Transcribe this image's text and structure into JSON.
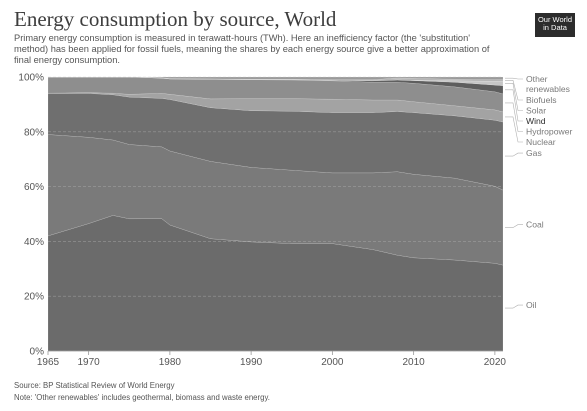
{
  "header": {
    "title": "Energy consumption by source, World",
    "subtitle": "Primary energy consumption is measured in terawatt-hours (TWh). Here an inefficiency factor (the 'substitution' method) has been applied for fossil fuels, meaning the shares by each energy source give a better approximation of final energy consumption.",
    "logo_line1": "Our World",
    "logo_line2": "in Data"
  },
  "footer": {
    "source": "Source: BP Statistical Review of World Energy",
    "note": "Note: 'Other renewables' includes geothermal, biomass and waste energy."
  },
  "chart_data": {
    "type": "area",
    "stacked": true,
    "title": "Energy consumption by source, World",
    "x_ticks": [
      "1965",
      "1970",
      "1980",
      "1990",
      "2000",
      "2010",
      "2020"
    ],
    "y_ticks": [
      "0%",
      "20%",
      "40%",
      "60%",
      "80%",
      "100%"
    ],
    "ylim": [
      0,
      100
    ],
    "grid": true,
    "legend_position": "right",
    "x": [
      1965,
      1970,
      1973,
      1975,
      1979,
      1980,
      1985,
      1990,
      1995,
      2000,
      2005,
      2008,
      2010,
      2015,
      2020,
      2021
    ],
    "series": [
      {
        "name": "Oil",
        "color": "#6b6b6b",
        "values": [
          42.0,
          46.5,
          49.5,
          48.0,
          48.3,
          46.0,
          41.0,
          39.8,
          39.2,
          39.2,
          37.0,
          35.0,
          34.0,
          33.3,
          32.5,
          31.5
        ]
      },
      {
        "name": "Coal",
        "color": "#7a7a7a",
        "values": [
          37.0,
          31.5,
          27.5,
          27.0,
          26.2,
          27.0,
          28.2,
          27.2,
          26.8,
          25.8,
          28.0,
          30.5,
          30.5,
          30.0,
          28.5,
          27.5
        ]
      },
      {
        "name": "Gas",
        "color": "#6f6f6f",
        "values": [
          15.0,
          16.0,
          16.5,
          17.2,
          17.7,
          18.8,
          19.6,
          20.7,
          21.5,
          22.0,
          22.0,
          22.0,
          22.5,
          22.8,
          24.5,
          25.0
        ]
      },
      {
        "name": "Nuclear",
        "color": "#a3a3a3",
        "values": [
          0.1,
          0.3,
          0.6,
          1.0,
          1.8,
          1.9,
          3.2,
          4.4,
          4.6,
          4.9,
          4.6,
          4.2,
          4.0,
          3.7,
          3.8,
          3.7
        ]
      },
      {
        "name": "Hydropower",
        "color": "#8e8e8e",
        "values": [
          5.9,
          5.7,
          5.9,
          6.3,
          5.6,
          5.6,
          7.2,
          6.9,
          6.8,
          6.7,
          6.5,
          6.5,
          6.7,
          6.9,
          6.7,
          6.6
        ]
      },
      {
        "name": "Wind",
        "color": "#5e5e5e",
        "values": [
          0,
          0,
          0,
          0,
          0,
          0,
          0,
          0.05,
          0.1,
          0.2,
          0.5,
          0.8,
          1.0,
          1.7,
          2.5,
          3.0
        ]
      },
      {
        "name": "Solar",
        "color": "#c6c6c6",
        "values": [
          0,
          0,
          0,
          0,
          0,
          0,
          0,
          0,
          0,
          0,
          0,
          0.05,
          0.1,
          0.5,
          1.4,
          1.7
        ]
      },
      {
        "name": "Biofuels",
        "color": "#b5b5b5",
        "values": [
          0,
          0,
          0,
          0,
          0.1,
          0.1,
          0.1,
          0.15,
          0.2,
          0.2,
          0.4,
          0.7,
          0.7,
          0.6,
          0.6,
          0.6
        ]
      },
      {
        "name": "Other renewables",
        "color": "#9a9a9a",
        "values": [
          0.0,
          0.0,
          0.0,
          0.0,
          0.3,
          0.6,
          0.7,
          0.8,
          0.8,
          1.0,
          1.0,
          0.35,
          0.5,
          0.8,
          1.0,
          0.9
        ]
      }
    ]
  }
}
